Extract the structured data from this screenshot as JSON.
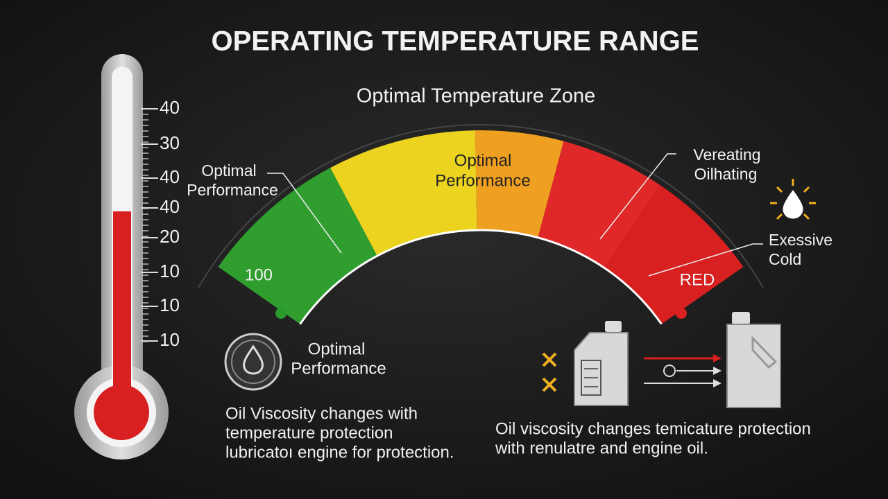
{
  "title": "OPERATING TEMPERATURE RANGE",
  "subtitle": "Optimal Temperature Zone",
  "thermometer": {
    "scale_labels": [
      "40",
      "30",
      "40",
      "40",
      "20",
      "10",
      "10",
      "10"
    ]
  },
  "gauge": {
    "start_label": "100",
    "end_label": "RED",
    "center_label": [
      "Optimal",
      "Performance"
    ],
    "callouts": [
      {
        "lines": [
          "Optimal",
          "Performance"
        ]
      },
      {
        "lines": [
          "Vereating",
          "Oilhating"
        ]
      },
      {
        "lines": [
          "Exessive",
          "Cold"
        ]
      }
    ]
  },
  "left_panel": {
    "label": [
      "Optimal",
      "Performance"
    ],
    "text": [
      "Oil Viscosity changes with",
      "temperature protection",
      "lubricatoı engine for protection."
    ]
  },
  "right_panel": {
    "text": [
      "Oil viscosity changes temicature protection",
      "with renulatre and engine oil."
    ]
  }
}
